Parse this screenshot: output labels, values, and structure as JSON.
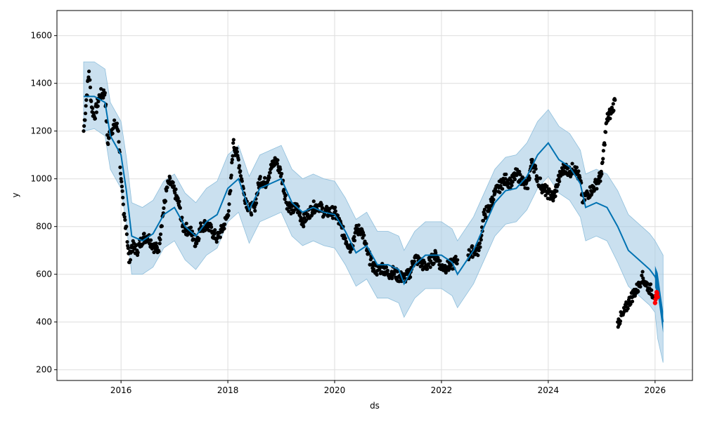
{
  "chart_data": {
    "type": "line",
    "title": "",
    "xlabel": "ds",
    "ylabel": "y",
    "xlim": [
      2014.8,
      2026.7
    ],
    "ylim": [
      155,
      1705
    ],
    "grid": true,
    "x_ticks": [
      2016,
      2018,
      2020,
      2022,
      2024,
      2026
    ],
    "x_tick_labels": [
      "2016",
      "2018",
      "2020",
      "2022",
      "2024",
      "2026"
    ],
    "y_ticks": [
      200,
      400,
      600,
      800,
      1000,
      1200,
      1400,
      1600
    ],
    "y_tick_labels": [
      "200",
      "400",
      "600",
      "800",
      "1000",
      "1200",
      "1400",
      "1600"
    ],
    "colors": {
      "forecast": "#0072B2",
      "band": "#a6cce4",
      "observed": "#000000",
      "recent": "#ff0000"
    },
    "observed": {
      "name": "observed",
      "x": [
        2015.3,
        2015.35,
        2015.4,
        2015.45,
        2015.5,
        2015.6,
        2015.7,
        2015.75,
        2015.8,
        2015.9,
        2015.95,
        2016.0,
        2016.05,
        2016.1,
        2016.15,
        2016.2,
        2016.3,
        2016.4,
        2016.5,
        2016.6,
        2016.7,
        2016.75,
        2016.85,
        2016.9,
        2017.0,
        2017.1,
        2017.15,
        2017.3,
        2017.4,
        2017.5,
        2017.6,
        2017.7,
        2017.8,
        2017.9,
        2018.0,
        2018.05,
        2018.1,
        2018.2,
        2018.3,
        2018.4,
        2018.5,
        2018.6,
        2018.7,
        2018.8,
        2018.9,
        2019.0,
        2019.1,
        2019.2,
        2019.3,
        2019.4,
        2019.5,
        2019.6,
        2019.7,
        2019.8,
        2019.9,
        2020.0,
        2020.1,
        2020.2,
        2020.3,
        2020.4,
        2020.5,
        2020.6,
        2020.7,
        2020.8,
        2020.9,
        2021.0,
        2021.1,
        2021.2,
        2021.3,
        2021.4,
        2021.5,
        2021.6,
        2021.7,
        2021.8,
        2021.9,
        2022.0,
        2022.1,
        2022.2,
        2022.3,
        2022.5,
        2022.6,
        2022.7,
        2022.8,
        2022.9,
        2023.0,
        2023.1,
        2023.2,
        2023.3,
        2023.4,
        2023.5,
        2023.6,
        2023.7,
        2023.8,
        2023.9,
        2024.0,
        2024.1,
        2024.2,
        2024.3,
        2024.4,
        2024.5,
        2024.6,
        2024.65,
        2024.7,
        2024.8,
        2024.9,
        2025.0,
        2025.05,
        2025.1,
        2025.2,
        2025.25,
        2025.3,
        2025.4,
        2025.5,
        2025.6,
        2025.7,
        2025.75,
        2025.8,
        2025.9,
        2026.0
      ],
      "y": [
        1200,
        1330,
        1450,
        1300,
        1260,
        1350,
        1360,
        1150,
        1200,
        1230,
        1200,
        1000,
        850,
        800,
        650,
        720,
        700,
        750,
        760,
        720,
        700,
        800,
        950,
        990,
        950,
        880,
        800,
        780,
        730,
        800,
        810,
        780,
        750,
        790,
        850,
        950,
        1150,
        1080,
        940,
        870,
        880,
        1000,
        980,
        1040,
        1080,
        1020,
        900,
        870,
        880,
        820,
        850,
        880,
        890,
        860,
        860,
        860,
        810,
        750,
        710,
        780,
        790,
        700,
        640,
        615,
        630,
        600,
        610,
        590,
        585,
        600,
        670,
        650,
        630,
        655,
        680,
        630,
        630,
        640,
        660,
        680,
        700,
        700,
        850,
        880,
        940,
        970,
        1000,
        980,
        1020,
        1000,
        960,
        1080,
        1000,
        960,
        940,
        920,
        1000,
        1050,
        1030,
        1050,
        990,
        900,
        930,
        950,
        980,
        1020,
        1150,
        1250,
        1290,
        1330,
        400,
        430,
        480,
        520,
        550,
        595,
        570,
        540,
        510
      ]
    },
    "recent_observed": {
      "name": "recent",
      "x": [
        2026.0,
        2026.01,
        2026.02,
        2026.03,
        2026.04,
        2026.05
      ],
      "y": [
        480,
        495,
        510,
        525,
        520,
        505
      ]
    },
    "forecast": {
      "name": "yhat",
      "x": [
        2015.3,
        2015.5,
        2015.7,
        2015.8,
        2016.0,
        2016.1,
        2016.2,
        2016.4,
        2016.6,
        2016.8,
        2017.0,
        2017.2,
        2017.4,
        2017.6,
        2017.8,
        2018.0,
        2018.2,
        2018.4,
        2018.6,
        2018.8,
        2019.0,
        2019.2,
        2019.4,
        2019.6,
        2019.8,
        2020.0,
        2020.2,
        2020.4,
        2020.6,
        2020.8,
        2021.0,
        2021.2,
        2021.3,
        2021.5,
        2021.7,
        2022.0,
        2022.2,
        2022.3,
        2022.6,
        2022.8,
        2023.0,
        2023.2,
        2023.4,
        2023.6,
        2023.8,
        2024.0,
        2024.2,
        2024.4,
        2024.6,
        2024.7,
        2024.9,
        2025.1,
        2025.3,
        2025.5,
        2025.7,
        2025.9,
        2026.0,
        2026.05,
        2026.1,
        2026.15
      ],
      "yhat": [
        1345,
        1345,
        1320,
        1180,
        1100,
        950,
        760,
        740,
        770,
        850,
        880,
        800,
        760,
        820,
        850,
        960,
        1000,
        870,
        960,
        980,
        1000,
        900,
        860,
        880,
        860,
        850,
        780,
        690,
        720,
        640,
        640,
        620,
        560,
        640,
        680,
        680,
        650,
        600,
        700,
        800,
        900,
        950,
        960,
        1010,
        1100,
        1150,
        1080,
        1050,
        980,
        880,
        900,
        880,
        800,
        700,
        660,
        620,
        590,
        560,
        480,
        400
      ],
      "yhat_lower": [
        1200,
        1210,
        1180,
        1040,
        960,
        810,
        600,
        600,
        630,
        710,
        740,
        660,
        620,
        680,
        710,
        820,
        860,
        730,
        820,
        840,
        860,
        760,
        720,
        740,
        720,
        710,
        640,
        550,
        580,
        500,
        500,
        480,
        420,
        500,
        540,
        540,
        510,
        460,
        560,
        660,
        760,
        810,
        820,
        870,
        960,
        1010,
        940,
        910,
        840,
        740,
        760,
        740,
        650,
        550,
        510,
        470,
        440,
        330,
        280,
        230
      ],
      "yhat_upper": [
        1490,
        1490,
        1460,
        1320,
        1240,
        1090,
        900,
        880,
        910,
        990,
        1020,
        940,
        900,
        960,
        990,
        1100,
        1140,
        1010,
        1100,
        1120,
        1140,
        1040,
        1000,
        1020,
        1000,
        990,
        920,
        830,
        860,
        780,
        780,
        760,
        700,
        780,
        820,
        820,
        790,
        740,
        840,
        940,
        1040,
        1090,
        1100,
        1150,
        1240,
        1290,
        1220,
        1190,
        1120,
        1020,
        1040,
        1020,
        950,
        850,
        810,
        770,
        740,
        720,
        700,
        680
      ]
    }
  }
}
